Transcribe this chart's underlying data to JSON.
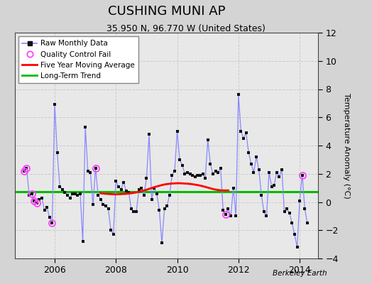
{
  "title": "CUSHING MUNI AP",
  "subtitle": "35.950 N, 96.770 W (United States)",
  "ylabel": "Temperature Anomaly (°C)",
  "watermark": "Berkeley Earth",
  "bg_color": "#d4d4d4",
  "plot_bg_color": "#e8e8e8",
  "ylim": [
    -4,
    12
  ],
  "yticks": [
    -4,
    -2,
    0,
    2,
    4,
    6,
    8,
    10,
    12
  ],
  "xlim_start": 2004.7,
  "xlim_end": 2014.6,
  "xticks": [
    2006,
    2008,
    2010,
    2012,
    2014
  ],
  "long_term_trend_y": 0.75,
  "raw_data": [
    2005.0,
    2.2,
    2005.083,
    2.4,
    2005.167,
    0.5,
    2005.25,
    0.6,
    2005.333,
    0.1,
    2005.417,
    -0.1,
    2005.5,
    0.2,
    2005.583,
    0.3,
    2005.667,
    -0.6,
    2005.75,
    -0.4,
    2005.833,
    -1.1,
    2005.917,
    -1.5,
    2006.0,
    6.9,
    2006.083,
    3.5,
    2006.167,
    1.1,
    2006.25,
    0.9,
    2006.333,
    0.7,
    2006.417,
    0.5,
    2006.5,
    0.3,
    2006.583,
    0.6,
    2006.667,
    0.6,
    2006.75,
    0.5,
    2006.833,
    0.6,
    2006.917,
    -2.8,
    2007.0,
    5.3,
    2007.083,
    2.2,
    2007.167,
    2.1,
    2007.25,
    -0.2,
    2007.333,
    2.4,
    2007.417,
    0.5,
    2007.5,
    0.2,
    2007.583,
    -0.2,
    2007.667,
    -0.3,
    2007.75,
    -0.5,
    2007.833,
    -2.0,
    2007.917,
    -2.3,
    2008.0,
    1.5,
    2008.083,
    1.1,
    2008.167,
    0.9,
    2008.25,
    1.4,
    2008.333,
    0.8,
    2008.417,
    0.7,
    2008.5,
    -0.5,
    2008.583,
    -0.7,
    2008.667,
    -0.7,
    2008.75,
    0.9,
    2008.833,
    1.0,
    2008.917,
    0.5,
    2009.0,
    1.7,
    2009.083,
    4.8,
    2009.167,
    0.2,
    2009.25,
    1.0,
    2009.333,
    0.6,
    2009.417,
    -0.6,
    2009.5,
    -2.9,
    2009.583,
    -0.5,
    2009.667,
    -0.3,
    2009.75,
    0.5,
    2009.833,
    1.9,
    2009.917,
    2.2,
    2010.0,
    5.0,
    2010.083,
    3.0,
    2010.167,
    2.6,
    2010.25,
    2.0,
    2010.333,
    2.1,
    2010.417,
    2.0,
    2010.5,
    1.9,
    2010.583,
    1.8,
    2010.667,
    1.9,
    2010.75,
    1.9,
    2010.833,
    2.0,
    2010.917,
    1.7,
    2011.0,
    4.4,
    2011.083,
    2.7,
    2011.167,
    2.0,
    2011.25,
    2.2,
    2011.333,
    2.1,
    2011.417,
    2.4,
    2011.5,
    -0.6,
    2011.583,
    -0.9,
    2011.667,
    -0.5,
    2011.75,
    -1.0,
    2011.833,
    1.0,
    2011.917,
    -1.0,
    2012.0,
    7.6,
    2012.083,
    5.0,
    2012.167,
    4.5,
    2012.25,
    4.9,
    2012.333,
    3.5,
    2012.417,
    2.7,
    2012.5,
    2.1,
    2012.583,
    3.2,
    2012.667,
    2.3,
    2012.75,
    0.5,
    2012.833,
    -0.7,
    2012.917,
    -1.0,
    2013.0,
    2.1,
    2013.083,
    1.1,
    2013.167,
    1.2,
    2013.25,
    2.1,
    2013.333,
    1.8,
    2013.417,
    2.3,
    2013.5,
    -0.7,
    2013.583,
    -0.5,
    2013.667,
    -0.8,
    2013.75,
    -1.5,
    2013.833,
    -2.3,
    2013.917,
    -3.2,
    2014.0,
    0.1,
    2014.083,
    1.9,
    2014.167,
    -0.5,
    2014.25,
    -1.5
  ],
  "qc_fail_points": [
    [
      2005.0,
      2.2
    ],
    [
      2005.083,
      2.4
    ],
    [
      2005.25,
      0.6
    ],
    [
      2005.333,
      0.1
    ],
    [
      2005.417,
      -0.1
    ],
    [
      2005.917,
      -1.5
    ],
    [
      2007.333,
      2.4
    ],
    [
      2011.583,
      -0.9
    ],
    [
      2014.083,
      1.9
    ]
  ],
  "five_year_avg": [
    2007.5,
    0.62,
    2007.583,
    0.6,
    2007.667,
    0.58,
    2007.75,
    0.57,
    2007.833,
    0.56,
    2007.917,
    0.55,
    2008.0,
    0.54,
    2008.083,
    0.55,
    2008.167,
    0.56,
    2008.25,
    0.57,
    2008.333,
    0.58,
    2008.417,
    0.6,
    2008.5,
    0.62,
    2008.583,
    0.65,
    2008.667,
    0.68,
    2008.75,
    0.72,
    2008.833,
    0.77,
    2008.917,
    0.82,
    2009.0,
    0.87,
    2009.083,
    0.93,
    2009.167,
    0.99,
    2009.25,
    1.05,
    2009.333,
    1.1,
    2009.417,
    1.15,
    2009.5,
    1.2,
    2009.583,
    1.24,
    2009.667,
    1.27,
    2009.75,
    1.29,
    2009.833,
    1.31,
    2009.917,
    1.32,
    2010.0,
    1.33,
    2010.083,
    1.33,
    2010.167,
    1.32,
    2010.25,
    1.31,
    2010.333,
    1.3,
    2010.417,
    1.28,
    2010.5,
    1.26,
    2010.583,
    1.23,
    2010.667,
    1.2,
    2010.75,
    1.16,
    2010.833,
    1.12,
    2010.917,
    1.07,
    2011.0,
    1.02,
    2011.083,
    0.97,
    2011.167,
    0.92,
    2011.25,
    0.88,
    2011.333,
    0.85,
    2011.417,
    0.83,
    2011.5,
    0.82,
    2011.583,
    0.82,
    2011.667,
    0.82
  ],
  "line_color": "#8888ff",
  "marker_color": "#111111",
  "qc_color": "#ff44ff",
  "five_year_color": "#ff0000",
  "trend_color": "#00bb00"
}
